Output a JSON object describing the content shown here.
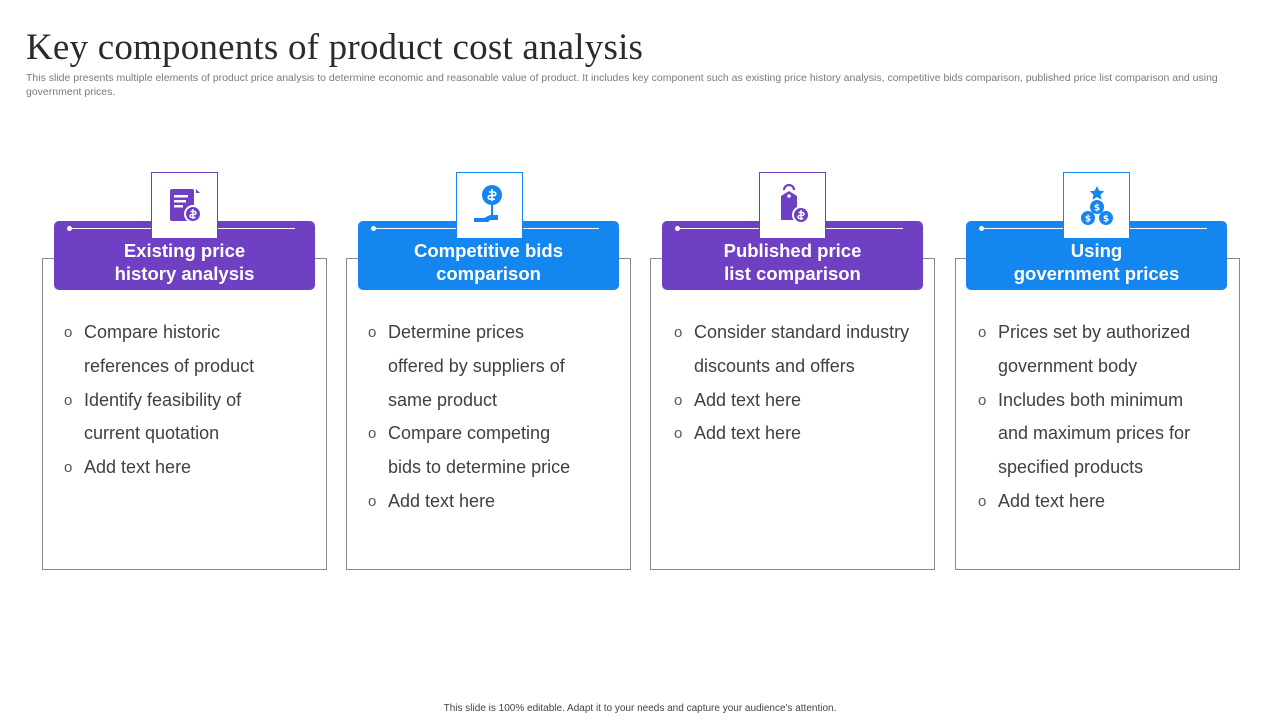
{
  "title": "Key components of product cost analysis",
  "subtitle": "This slide presents multiple elements of product price analysis to determine economic and reasonable value of product. It includes key component such as existing price history analysis, competitive bids comparison, published price list comparison and using government prices.",
  "colors": {
    "purple": "#6f3fc4",
    "blue": "#1486f0"
  },
  "cards": [
    {
      "icon": "invoice-receipt-icon",
      "heading": "Existing price\nhistory analysis",
      "bullets": [
        "Compare historic\nreferences of product",
        "Identify feasibility of\ncurrent quotation",
        "Add text here"
      ]
    },
    {
      "icon": "hand-holding-dollar-icon",
      "heading": "Competitive bids\ncomparison",
      "bullets": [
        "Determine prices\noffered by suppliers of\nsame product",
        "Compare competing\nbids to determine price",
        "Add text here"
      ]
    },
    {
      "icon": "price-tag-dollar-icon",
      "heading": "Published price\nlist comparison",
      "bullets": [
        "Consider standard industry\ndiscounts and offers",
        "Add text here",
        "Add text here"
      ]
    },
    {
      "icon": "government-coins-icon",
      "heading": "Using\ngovernment prices",
      "bullets": [
        "Prices set by authorized\ngovernment body",
        "Includes both minimum\nand maximum prices for\nspecified products",
        "Add text here"
      ]
    }
  ],
  "bullet_marker": "o",
  "footer": "This slide is 100% editable. Adapt it to your needs and capture your audience's attention."
}
